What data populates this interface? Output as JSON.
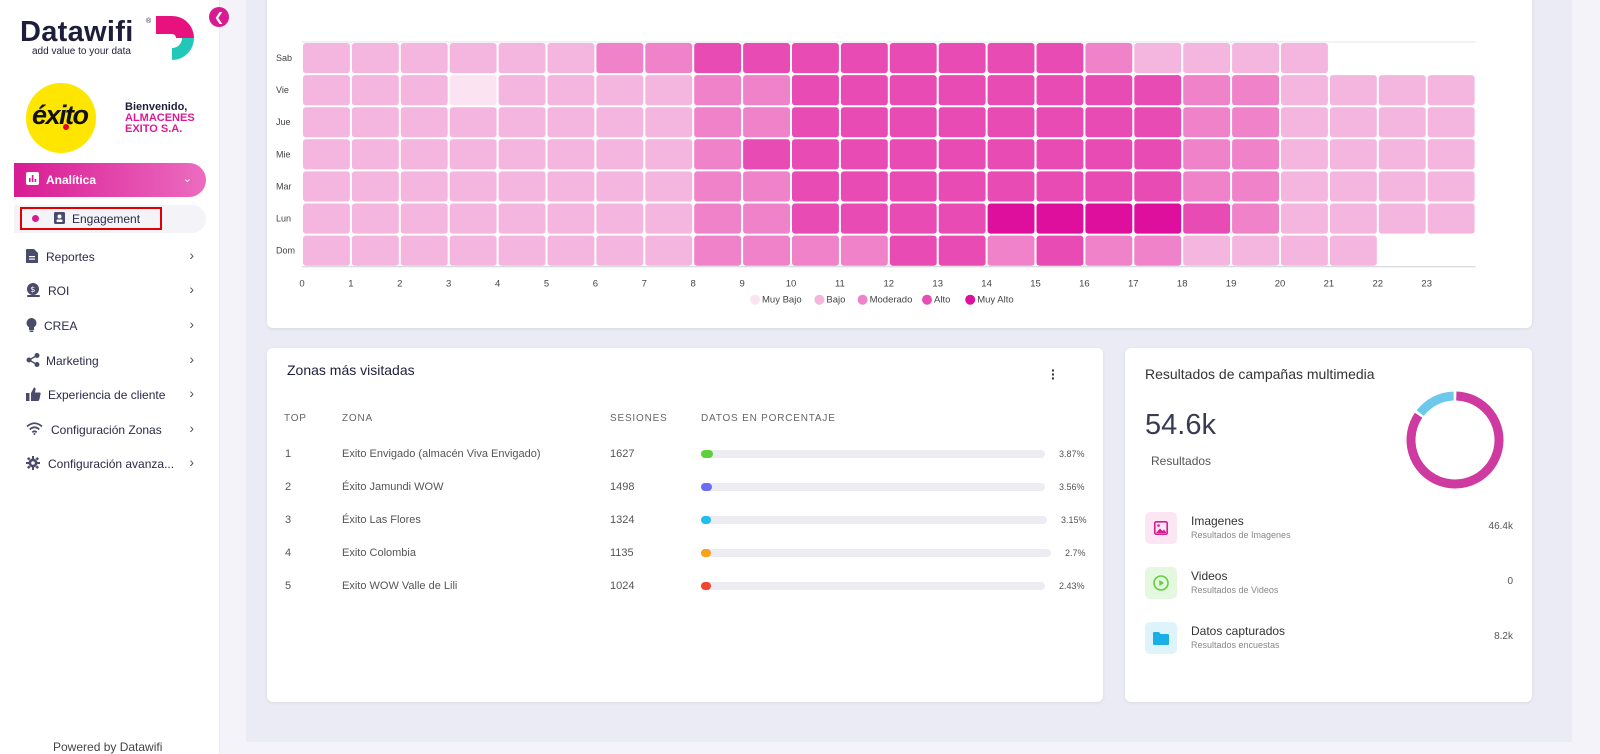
{
  "brand": {
    "name": "Datawifi",
    "registered": "®",
    "tagline": "add value to your data"
  },
  "company": {
    "logo_text": "éxito",
    "welcome": "Bienvenido,",
    "name_line1": "ALMACENES",
    "name_line2": "EXITO S.A."
  },
  "sidebar": {
    "collapse_icon": "chevron-left-icon",
    "active": {
      "label": "Analítica",
      "icon": "bar-chart-icon"
    },
    "submenu": [
      {
        "label": "Engagement",
        "icon": "contact-card-icon"
      }
    ],
    "items": [
      {
        "label": "Reportes",
        "icon": "document-icon"
      },
      {
        "label": "ROI",
        "icon": "money-icon"
      },
      {
        "label": "CREA",
        "icon": "lightbulb-icon"
      },
      {
        "label": "Marketing",
        "icon": "share-icon"
      },
      {
        "label": "Experiencia de cliente",
        "icon": "thumbs-up-icon"
      },
      {
        "label": "Configuración Zonas",
        "icon": "wifi-icon"
      },
      {
        "label": "Configuración avanza...",
        "icon": "gear-icon"
      }
    ],
    "footer": "Powered by Datawifi"
  },
  "chart_data": {
    "type": "heatmap",
    "y_categories": [
      "Sab",
      "Vie",
      "Jue",
      "Mie",
      "Mar",
      "Lun",
      "Dom"
    ],
    "x_ticks": [
      "0",
      "1",
      "2",
      "3",
      "4",
      "5",
      "6",
      "7",
      "8",
      "9",
      "10",
      "11",
      "12",
      "13",
      "14",
      "15",
      "16",
      "17",
      "18",
      "19",
      "20",
      "21",
      "22",
      "23"
    ],
    "levels": [
      "Muy Bajo",
      "Bajo",
      "Moderado",
      "Alto",
      "Muy Alto"
    ],
    "level_colors": [
      "#fbe3f2",
      "#f4b6de",
      "#ef82c9",
      "#e84cb4",
      "#de0f9c"
    ],
    "rows": [
      {
        "day": "Sab",
        "levels": [
          1,
          1,
          1,
          1,
          1,
          1,
          2,
          2,
          3,
          3,
          3,
          3,
          3,
          3,
          3,
          3,
          2,
          1,
          1,
          1,
          1,
          null,
          null,
          null
        ]
      },
      {
        "day": "Vie",
        "levels": [
          1,
          1,
          1,
          0,
          1,
          1,
          1,
          1,
          2,
          2,
          3,
          3,
          3,
          3,
          3,
          3,
          3,
          3,
          2,
          2,
          1,
          1,
          1,
          1
        ]
      },
      {
        "day": "Jue",
        "levels": [
          1,
          1,
          1,
          1,
          1,
          1,
          1,
          1,
          2,
          2,
          3,
          3,
          3,
          3,
          3,
          3,
          3,
          3,
          2,
          2,
          1,
          1,
          1,
          1
        ]
      },
      {
        "day": "Mie",
        "levels": [
          1,
          1,
          1,
          1,
          1,
          1,
          1,
          1,
          2,
          3,
          3,
          3,
          3,
          3,
          3,
          3,
          3,
          3,
          2,
          2,
          1,
          1,
          1,
          1
        ]
      },
      {
        "day": "Mar",
        "levels": [
          1,
          1,
          1,
          1,
          1,
          1,
          1,
          1,
          2,
          2,
          3,
          3,
          3,
          3,
          3,
          3,
          3,
          3,
          2,
          2,
          1,
          1,
          1,
          1
        ]
      },
      {
        "day": "Lun",
        "levels": [
          1,
          1,
          1,
          1,
          1,
          1,
          1,
          1,
          2,
          2,
          3,
          3,
          3,
          3,
          4,
          4,
          4,
          4,
          3,
          2,
          1,
          1,
          1,
          1
        ]
      },
      {
        "day": "Dom",
        "levels": [
          1,
          1,
          1,
          1,
          1,
          1,
          1,
          1,
          2,
          2,
          2,
          2,
          3,
          3,
          2,
          3,
          2,
          2,
          1,
          1,
          1,
          1,
          null,
          null
        ]
      }
    ]
  },
  "zones": {
    "title": "Zonas más visitadas",
    "menu_icon": "kebab-menu-icon",
    "headers": {
      "top": "TOP",
      "zone": "ZONA",
      "sessions": "SESIONES",
      "percent": "DATOS EN PORCENTAJE"
    },
    "rows": [
      {
        "top": "1",
        "zone": "Exito Envigado (almacén Viva Envigado)",
        "sessions": "1627",
        "percent": "3.87%",
        "value": 3.87,
        "color": "#5fd03b"
      },
      {
        "top": "2",
        "zone": "Éxito Jamundi WOW",
        "sessions": "1498",
        "percent": "3.56%",
        "value": 3.56,
        "color": "#6b6cf6"
      },
      {
        "top": "3",
        "zone": "Éxito Las Flores",
        "sessions": "1324",
        "percent": "3.15%",
        "value": 3.15,
        "color": "#1ec0ea"
      },
      {
        "top": "4",
        "zone": "Exito Colombia",
        "sessions": "1135",
        "percent": "2.7%",
        "value": 2.7,
        "color": "#f7a21b"
      },
      {
        "top": "5",
        "zone": "Exito WOW Valle de Lili",
        "sessions": "1024",
        "percent": "2.43%",
        "value": 2.43,
        "color": "#f2452d"
      }
    ]
  },
  "campaigns": {
    "title": "Resultados de campañas multimedia",
    "total": "54.6k",
    "total_label": "Resultados",
    "donut": {
      "values": [
        46.4,
        0,
        8.2
      ],
      "colors": [
        "#cf3aa0",
        "#5fd03b",
        "#6ec8ec"
      ]
    },
    "items": [
      {
        "title": "Imagenes",
        "subtitle": "Resultados de Imagenes",
        "value": "46.4k",
        "icon": "image-icon"
      },
      {
        "title": "Videos",
        "subtitle": "Resultados de Videos",
        "value": "0",
        "icon": "play-circle-icon"
      },
      {
        "title": "Datos capturados",
        "subtitle": "Resultados encuestas",
        "value": "8.2k",
        "icon": "folder-icon"
      }
    ]
  }
}
